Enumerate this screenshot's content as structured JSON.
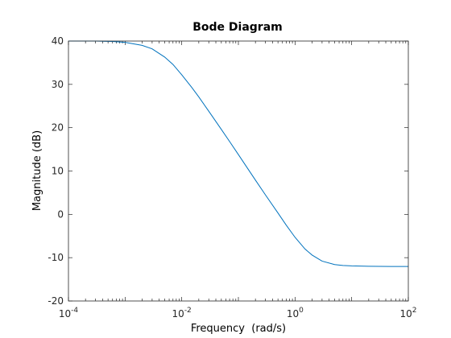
{
  "chart_data": {
    "type": "line",
    "title": "Bode Diagram",
    "xlabel": "Frequency  (rad/s)",
    "ylabel": "Magnitude (dB)",
    "x_scale": "log",
    "xlim": [
      0.0001,
      100
    ],
    "ylim": [
      -20,
      40
    ],
    "x_ticks": [
      {
        "base": "10",
        "exp": "-4",
        "value": 0.0001
      },
      {
        "base": "10",
        "exp": "-2",
        "value": 0.01
      },
      {
        "base": "10",
        "exp": "0",
        "value": 1
      },
      {
        "base": "10",
        "exp": "2",
        "value": 100
      }
    ],
    "y_ticks": [
      "-20",
      "-10",
      "0",
      "10",
      "20",
      "30",
      "40"
    ],
    "grid": false,
    "line_color": "#0072bd",
    "axis_color": "#262626",
    "series": [
      {
        "x": [
          0.0001,
          0.0003,
          0.0006,
          0.001,
          0.002,
          0.003,
          0.005,
          0.007,
          0.01,
          0.015,
          0.02,
          0.03,
          0.05,
          0.07,
          0.1,
          0.2,
          0.3,
          0.5,
          0.7,
          1,
          1.5,
          2,
          3,
          5,
          7,
          10,
          20,
          50,
          100
        ],
        "y": [
          40,
          40,
          39.9,
          39.7,
          39,
          38.2,
          36.3,
          34.6,
          32.2,
          29.3,
          27.1,
          23.8,
          19.6,
          16.8,
          13.8,
          7.9,
          4.5,
          0.3,
          -2.5,
          -5.3,
          -8.0,
          -9.4,
          -10.8,
          -11.6,
          -11.8,
          -11.9,
          -12.0,
          -12.04,
          -12.04
        ]
      }
    ]
  }
}
